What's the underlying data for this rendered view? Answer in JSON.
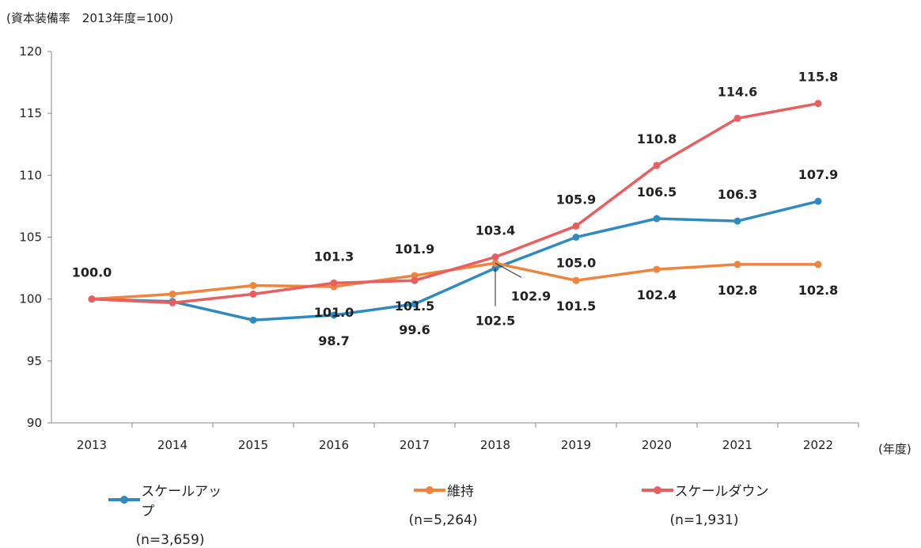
{
  "chart_data": {
    "type": "line",
    "ylabel": "(資本装備率　2013年度=100)",
    "xunit": "(年度)",
    "x": [
      "2013",
      "2014",
      "2015",
      "2016",
      "2017",
      "2018",
      "2019",
      "2020",
      "2021",
      "2022"
    ],
    "ylim": [
      90,
      120
    ],
    "yticks": [
      "90",
      "95",
      "100",
      "105",
      "110",
      "115",
      "120"
    ],
    "grid": false,
    "legend_position": "bottom",
    "series": [
      {
        "name": "スケールアップ",
        "n": "(n=3,659)",
        "color": "#2E8BC0",
        "values": [
          100.0,
          99.8,
          98.3,
          98.7,
          99.6,
          102.5,
          105.0,
          106.5,
          106.3,
          107.9
        ],
        "labels": [
          null,
          null,
          null,
          "98.7",
          "99.6",
          "102.5",
          "105.0",
          "106.5",
          "106.3",
          "107.9"
        ],
        "label_pos": [
          null,
          null,
          null,
          "below",
          "below",
          "below-leader",
          "below",
          "above",
          "above",
          "above"
        ]
      },
      {
        "name": "維持",
        "n": "(n=5,264)",
        "color": "#F0843C",
        "values": [
          100.0,
          100.4,
          101.1,
          101.0,
          101.9,
          102.9,
          101.5,
          102.4,
          102.8,
          102.8
        ],
        "labels": [
          null,
          null,
          null,
          "101.0",
          "101.9",
          "102.9",
          "101.5",
          "102.4",
          "102.8",
          "102.8"
        ],
        "label_pos": [
          null,
          null,
          null,
          "below",
          "above",
          "right-leader",
          "below",
          "below",
          "below",
          "below"
        ]
      },
      {
        "name": "スケールダウン",
        "n": "(n=1,931)",
        "color": "#E95E5E",
        "values": [
          100.0,
          99.7,
          100.4,
          101.3,
          101.5,
          103.4,
          105.9,
          110.8,
          114.6,
          115.8
        ],
        "labels": [
          "100.0",
          null,
          null,
          "101.3",
          "101.5",
          "103.4",
          "105.9",
          "110.8",
          "114.6",
          "115.8"
        ],
        "label_pos": [
          "above",
          null,
          null,
          "above",
          "below",
          "above",
          "above",
          "above",
          "above",
          "above"
        ]
      }
    ]
  }
}
